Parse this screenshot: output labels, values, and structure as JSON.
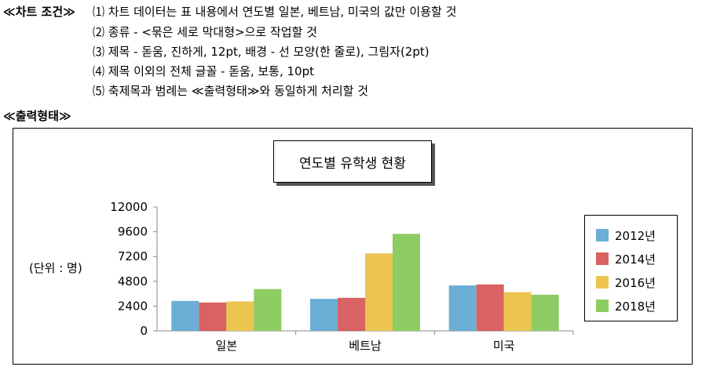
{
  "conditions": {
    "heading": "≪차트 조건≫",
    "items": [
      "⑴ 차트 데이터는 표 내용에서 연도별 일본, 베트남, 미국의 값만 이용할 것",
      "⑵ 종류 - <묶은 세로 막대형>으로 작업할 것",
      "⑶ 제목 - 돋움, 진하게, 12pt, 배경 - 선 모양(한 줄로), 그림자(2pt)",
      "⑷ 제목 이외의 전체 글꼴 - 돋움, 보통, 10pt",
      "⑸ 축제목과 범례는 ≪출력형태≫와 동일하게 처리할 것"
    ]
  },
  "output_heading": "≪출력형태≫",
  "chart_data": {
    "type": "bar",
    "title": "연도별 유학생 현황",
    "ylabel": "(단위 : 명)",
    "categories": [
      "일본",
      "베트남",
      "미국"
    ],
    "y_ticks": [
      "0",
      "2400",
      "4800",
      "7200",
      "9600",
      "12000"
    ],
    "ylim": [
      0,
      12000
    ],
    "legend_position": "right",
    "grid": false,
    "series": [
      {
        "name": "2012년",
        "color": "#6baed6",
        "values": [
          2900,
          3100,
          4400
        ]
      },
      {
        "name": "2014년",
        "color": "#d96262",
        "values": [
          2750,
          3200,
          4500
        ]
      },
      {
        "name": "2016년",
        "color": "#ebc550",
        "values": [
          2850,
          7500,
          3750
        ]
      },
      {
        "name": "2018년",
        "color": "#8dcc62",
        "values": [
          4050,
          9400,
          3500
        ]
      }
    ]
  }
}
